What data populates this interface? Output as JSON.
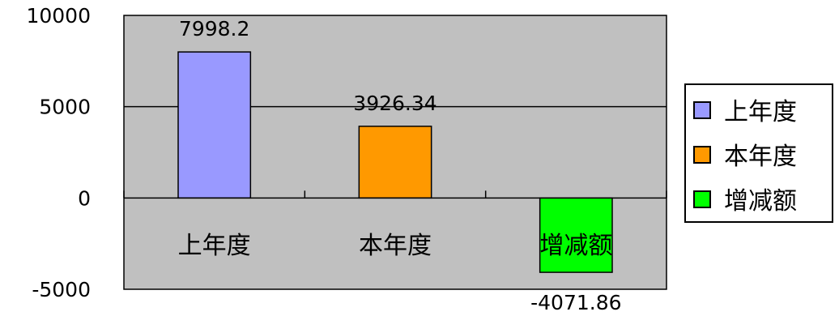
{
  "chart_data": {
    "type": "bar",
    "categories": [
      "上年度",
      "本年度",
      "增减额"
    ],
    "values": [
      7998.2,
      3926.34,
      -4071.86
    ],
    "value_labels": [
      "7998.2",
      "3926.34",
      "-4071.86"
    ],
    "colors": [
      "#9999ff",
      "#ff9900",
      "#00ff00"
    ],
    "ylim": [
      -5000,
      10000
    ],
    "yticks": [
      "-5000",
      "0",
      "5000",
      "10000"
    ],
    "ytick_values": [
      -5000,
      0,
      5000,
      10000
    ],
    "gridlines": [
      5000
    ],
    "plot_background": "#c0c0c0",
    "legend": {
      "position": "right",
      "entries": [
        "上年度",
        "本年度",
        "增减额"
      ]
    }
  }
}
